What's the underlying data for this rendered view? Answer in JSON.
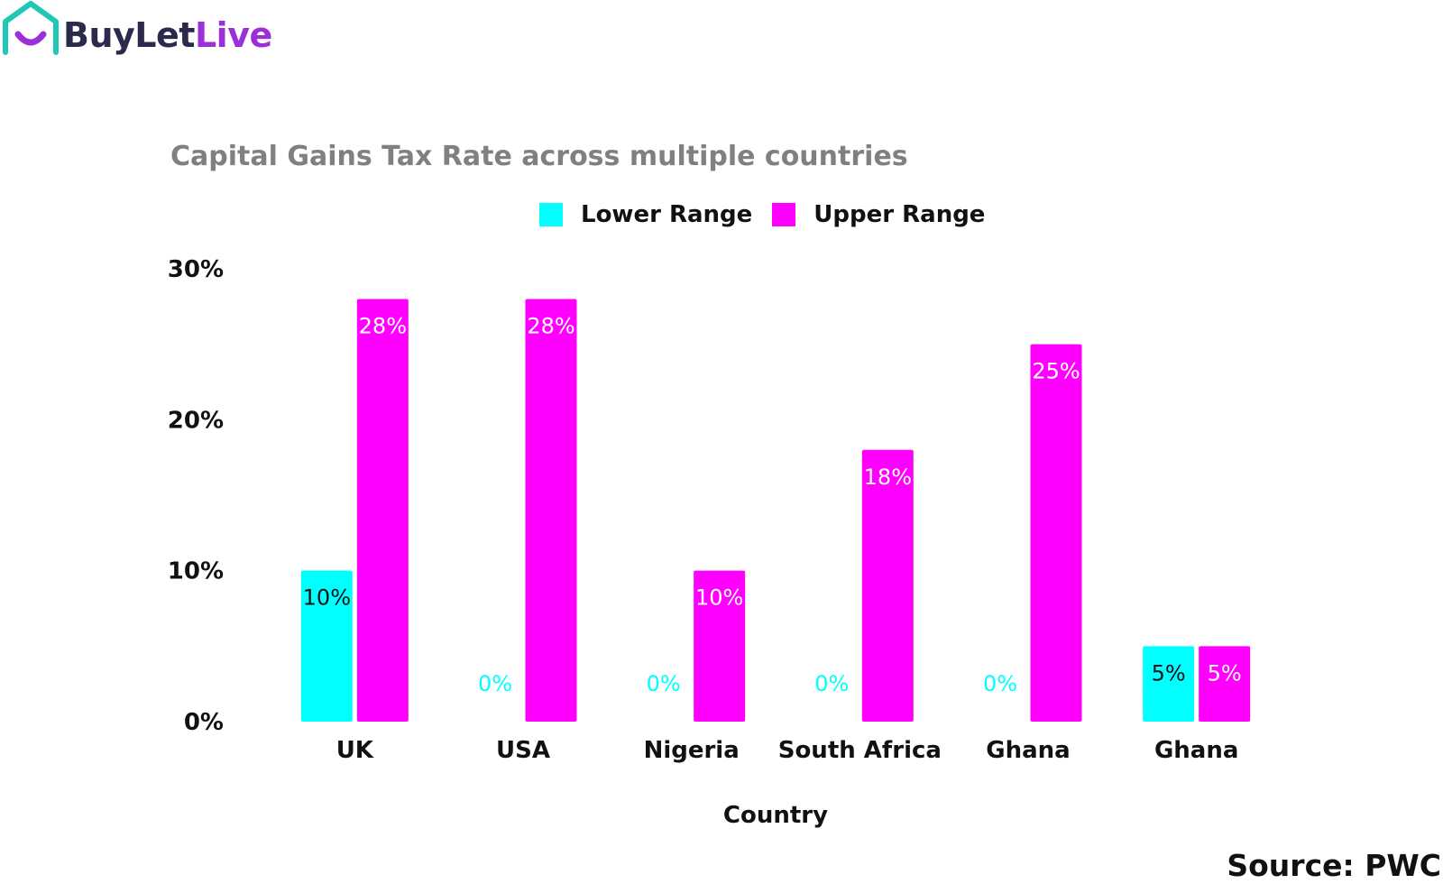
{
  "brand": {
    "name_part1": "BuyLet",
    "name_part2": "Live",
    "colors": {
      "teal": "#1fc7b7",
      "purple": "#9b30d9",
      "navy": "#2b2a4c"
    }
  },
  "source": "Source: PWC",
  "chart_data": {
    "type": "bar",
    "title": "Capital Gains Tax Rate across multiple countries",
    "xlabel": "Country",
    "ylabel": "",
    "categories": [
      "UK",
      "USA",
      "Nigeria",
      "South Africa",
      "Ghana",
      "Ghana"
    ],
    "series": [
      {
        "name": "Lower Range",
        "color": "#00ffff",
        "values": [
          10,
          0,
          0,
          0,
          0,
          5
        ],
        "labels": [
          "10%",
          "0%",
          "0%",
          "0%",
          "0%",
          "5%"
        ]
      },
      {
        "name": "Upper Range",
        "color": "#ff00ff",
        "values": [
          28,
          28,
          10,
          18,
          25,
          5
        ],
        "labels": [
          "28%",
          "28%",
          "10%",
          "18%",
          "25%",
          "5%"
        ]
      }
    ],
    "ylim": [
      0,
      30
    ],
    "yticks": [
      0,
      10,
      20,
      30
    ],
    "ytick_labels": [
      "0%",
      "10%",
      "20%",
      "30%"
    ],
    "grid": false,
    "legend_position": "top-center"
  }
}
